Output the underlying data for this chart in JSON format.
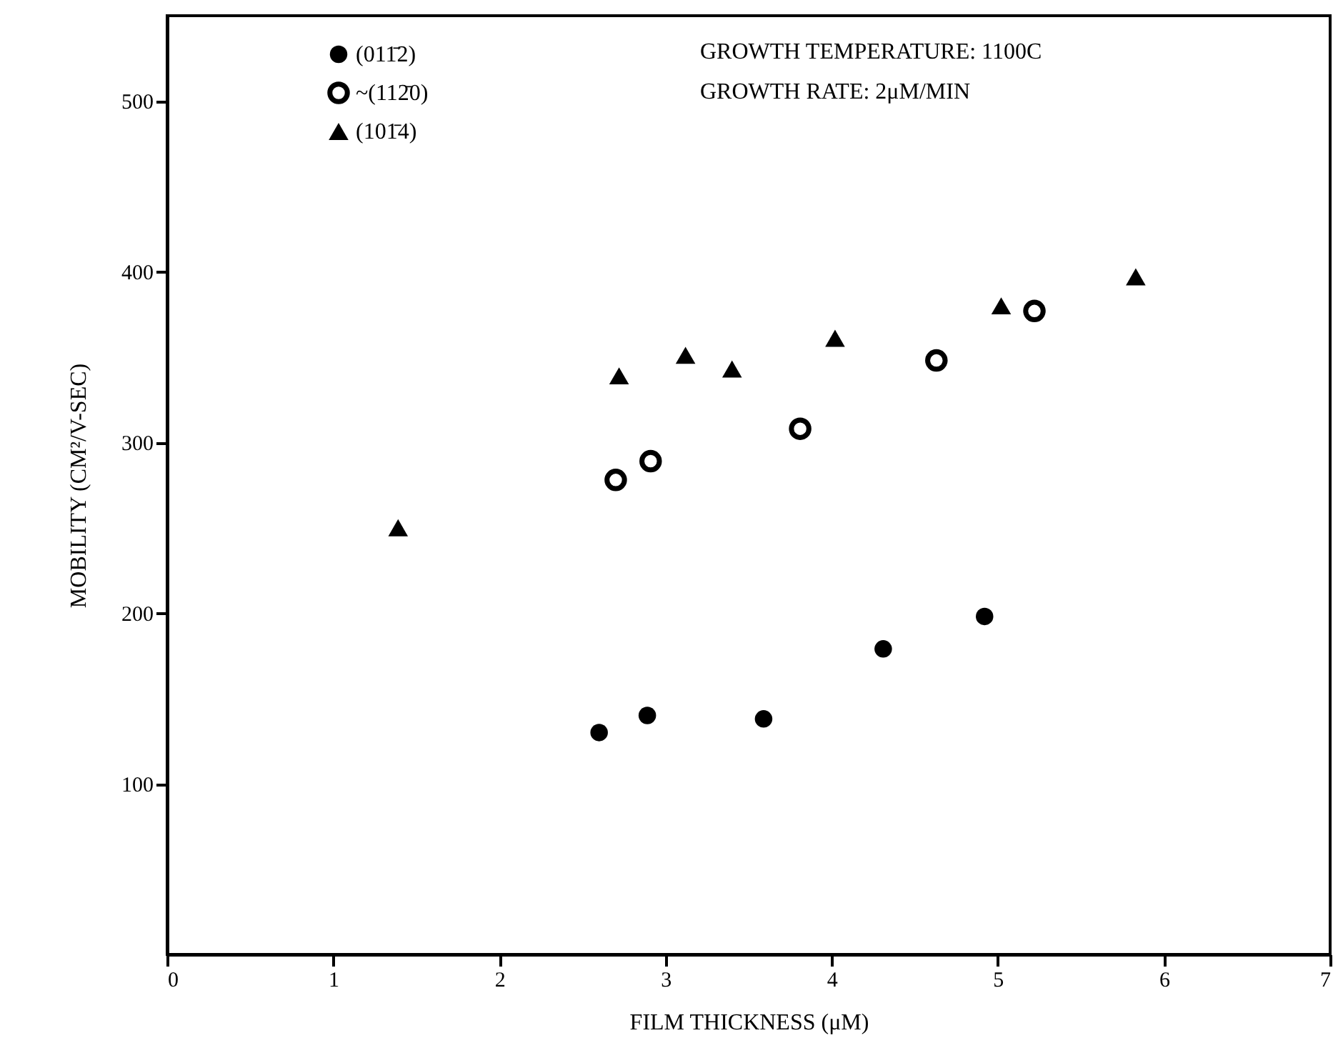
{
  "chart_data": {
    "type": "scatter",
    "xlabel": "FILM THICKNESS (μM)",
    "ylabel": "MOBILITY (CM²/V-SEC)",
    "annotations": [
      "GROWTH TEMPERATURE:  1100C",
      "GROWTH RATE:  2μM/MIN"
    ],
    "series": [
      {
        "name": "(011̄2)",
        "color": "#000000",
        "marker": "circle",
        "x": [
          2.6,
          2.89,
          3.59,
          4.31,
          4.92
        ],
        "values": [
          130,
          140,
          138,
          179,
          198
        ]
      },
      {
        "name": "~(112̄0)",
        "color": "#000000",
        "marker": "circle",
        "x": [
          2.7,
          2.91,
          3.81,
          4.63,
          5.22
        ],
        "values": [
          278,
          289,
          308,
          348,
          377
        ]
      },
      {
        "name": "(101̄4)",
        "color": "#000000",
        "marker": "triangle",
        "x": [
          1.39,
          2.72,
          3.12,
          3.4,
          4.02,
          5.02,
          5.83
        ],
        "values": [
          250,
          339,
          351,
          343,
          361,
          380,
          397
        ]
      }
    ],
    "xlim": [
      0,
      7
    ],
    "xticks": [
      0,
      1,
      2,
      3,
      4,
      5,
      6,
      7
    ],
    "ylim": [
      0,
      550
    ],
    "yticks": [
      100,
      200,
      300,
      400,
      500
    ],
    "grid": false,
    "legend": "top left"
  }
}
